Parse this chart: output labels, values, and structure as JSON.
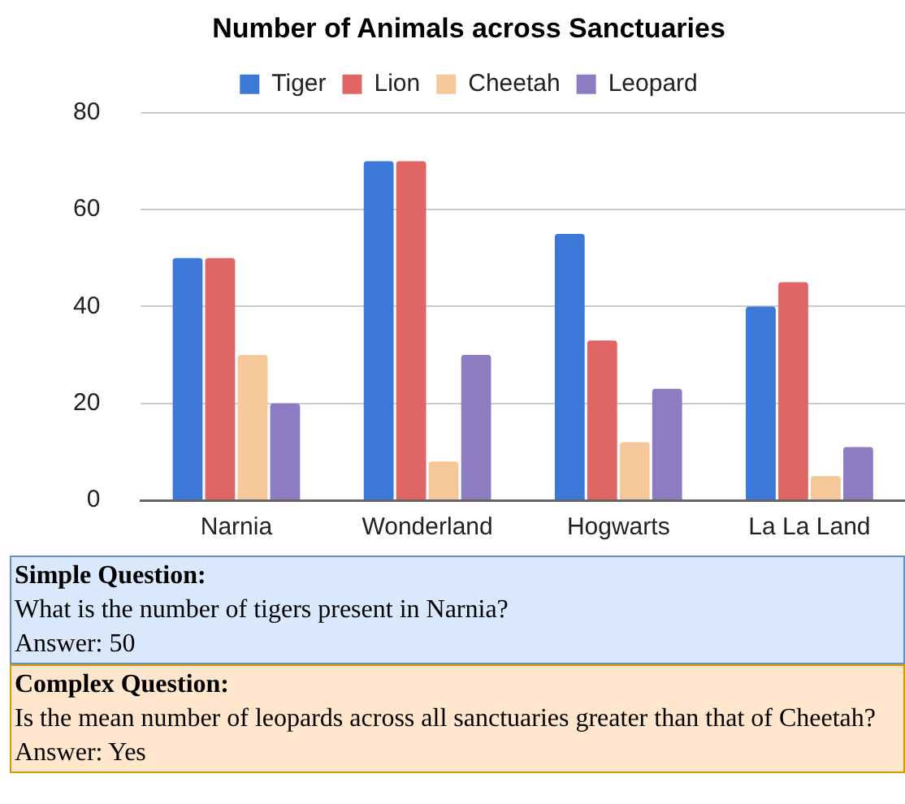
{
  "chart_data": {
    "type": "bar",
    "title": "Number of Animals across Sanctuaries",
    "categories": [
      "Narnia",
      "Wonderland",
      "Hogwarts",
      "La La Land"
    ],
    "series": [
      {
        "name": "Tiger",
        "color": "#3c78d8",
        "values": [
          50,
          70,
          55,
          40
        ]
      },
      {
        "name": "Lion",
        "color": "#e06666",
        "values": [
          50,
          70,
          33,
          45
        ]
      },
      {
        "name": "Cheetah",
        "color": "#f6c799",
        "values": [
          30,
          8,
          12,
          5
        ]
      },
      {
        "name": "Leopard",
        "color": "#8e7cc3",
        "values": [
          20,
          30,
          23,
          11
        ]
      }
    ],
    "ylim": [
      0,
      80
    ],
    "yticks": [
      0,
      20,
      40,
      60,
      80
    ],
    "grid": "y",
    "legend": "top",
    "annotations": [
      "Simple Question:",
      "What is the number of tigers present in Narnia?",
      "Answer: 50",
      "Complex Question:",
      "Is the mean number of leopards across all sanctuaries greater than that of Cheetah?",
      "Answer: Yes"
    ]
  }
}
